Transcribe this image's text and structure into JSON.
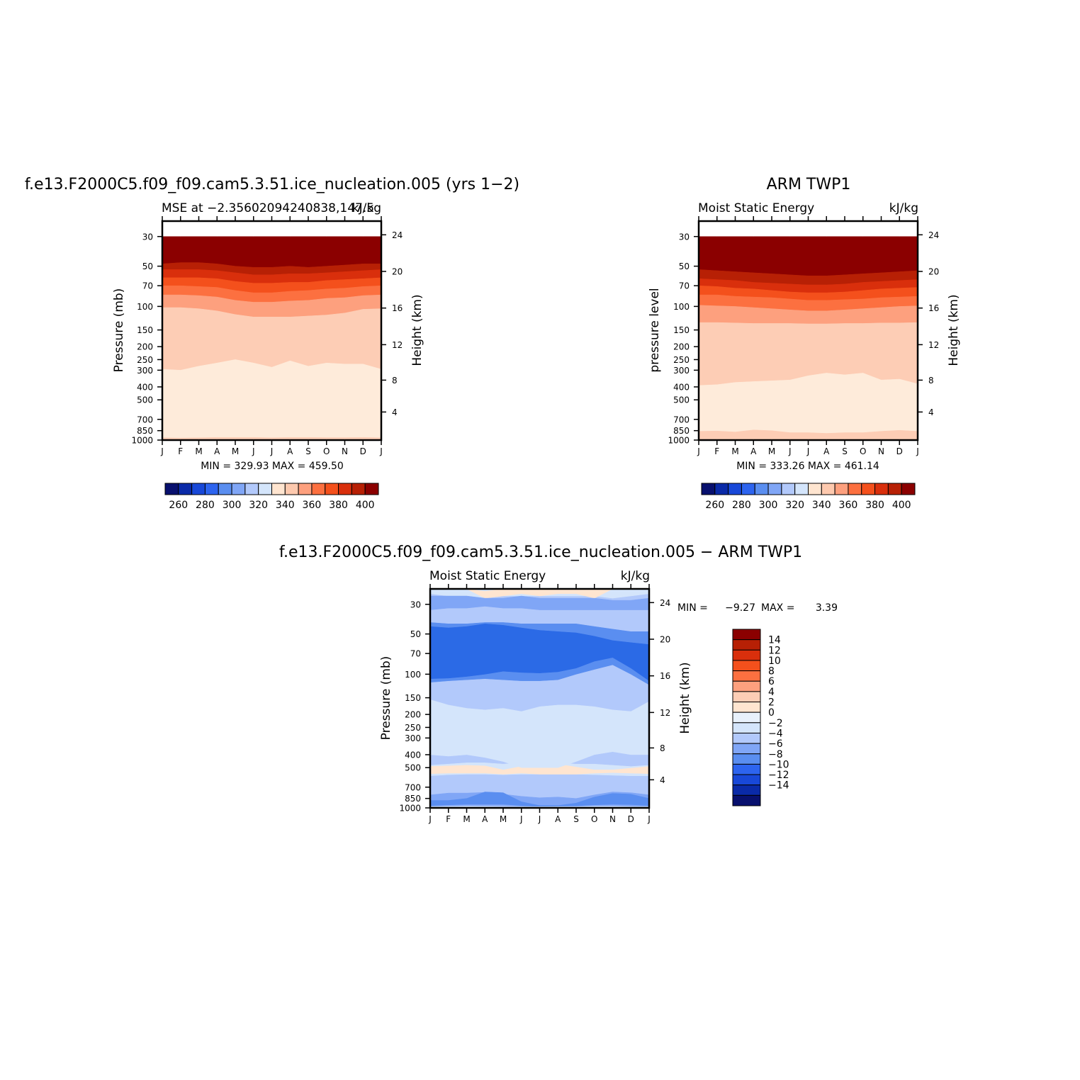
{
  "chart_data": [
    {
      "type": "heatmap",
      "id": "model",
      "title": "f.e13.F2000C5.f09_f09.cam5.3.51.ice_nucleation.005 (yrs 1−2)",
      "subtitle_left": "MSE at −2.35602094240838,147.5",
      "subtitle_right": "kJ/kg",
      "ylabel": "Pressure (mb)",
      "ylabel_right": "Height (km)",
      "months": [
        "J",
        "F",
        "M",
        "A",
        "M",
        "J",
        "J",
        "A",
        "S",
        "O",
        "N",
        "D",
        "J"
      ],
      "pressure_ticks": [
        30,
        50,
        70,
        100,
        150,
        200,
        250,
        300,
        400,
        500,
        700,
        850,
        1000
      ],
      "height_ticks": [
        24,
        20,
        16,
        12,
        8,
        4
      ],
      "ylim": [
        1000,
        23
      ],
      "stats": "MIN = 329.93 MAX = 459.50",
      "colorbar_labels": [
        "260",
        "280",
        "300",
        "320",
        "340",
        "360",
        "380",
        "400"
      ],
      "bands": [
        {
          "level": 420,
          "color": "#8b0000",
          "pressure": [
            30,
            30,
            30,
            30,
            30,
            30,
            30,
            30,
            30,
            30,
            30,
            30,
            30
          ]
        },
        {
          "level": 400,
          "color": "#b72005",
          "pressure": [
            48,
            47,
            47,
            48,
            50,
            51,
            51,
            50,
            51,
            50,
            49,
            48,
            48
          ]
        },
        {
          "level": 390,
          "color": "#d92f0c",
          "pressure": [
            53,
            53,
            53,
            54,
            56,
            58,
            58,
            57,
            57,
            56,
            55,
            54,
            53
          ]
        },
        {
          "level": 380,
          "color": "#f4501c",
          "pressure": [
            61,
            61,
            61,
            62,
            65,
            67,
            67,
            66,
            66,
            64,
            63,
            62,
            61
          ]
        },
        {
          "level": 370,
          "color": "#fc7040",
          "pressure": [
            70,
            70,
            71,
            72,
            76,
            79,
            79,
            77,
            76,
            74,
            73,
            71,
            70
          ]
        },
        {
          "level": 360,
          "color": "#fda07e",
          "pressure": [
            82,
            82,
            83,
            85,
            90,
            93,
            93,
            91,
            90,
            87,
            86,
            83,
            82
          ]
        },
        {
          "level": 350,
          "color": "#fdcdb5",
          "pressure": [
            102,
            102,
            104,
            108,
            115,
            120,
            120,
            120,
            118,
            116,
            112,
            105,
            104
          ]
        },
        {
          "level": 340,
          "color": "#feebda",
          "pressure": [
            295,
            300,
            280,
            265,
            250,
            265,
            285,
            255,
            280,
            265,
            270,
            270,
            295
          ]
        },
        {
          "level": 335,
          "color": "#fdcdb5",
          "pressure": [
            960,
            965,
            960,
            955,
            955,
            955,
            960,
            955,
            955,
            958,
            958,
            955,
            960
          ]
        }
      ]
    },
    {
      "type": "heatmap",
      "id": "obs",
      "title": "ARM TWP1",
      "subtitle_left": "Moist Static Energy",
      "subtitle_right": "kJ/kg",
      "ylabel": "pressure level",
      "ylabel_right": "Height (km)",
      "months": [
        "J",
        "F",
        "M",
        "A",
        "M",
        "J",
        "J",
        "A",
        "S",
        "O",
        "N",
        "D",
        "J"
      ],
      "pressure_ticks": [
        30,
        50,
        70,
        100,
        150,
        200,
        250,
        300,
        400,
        500,
        700,
        850,
        1000
      ],
      "height_ticks": [
        24,
        20,
        16,
        12,
        8,
        4
      ],
      "ylim": [
        1000,
        23
      ],
      "stats": "MIN = 333.26 MAX = 461.14",
      "colorbar_labels": [
        "260",
        "280",
        "300",
        "320",
        "340",
        "360",
        "380",
        "400"
      ],
      "bands": [
        {
          "level": 420,
          "color": "#8b0000",
          "pressure": [
            30,
            30,
            30,
            30,
            30,
            30,
            30,
            30,
            30,
            30,
            30,
            30,
            30
          ]
        },
        {
          "level": 400,
          "color": "#b72005",
          "pressure": [
            53,
            54,
            55,
            56,
            57,
            58,
            59,
            59,
            58,
            57,
            56,
            55,
            54
          ]
        },
        {
          "level": 390,
          "color": "#d92f0c",
          "pressure": [
            62,
            63,
            64,
            66,
            67,
            68,
            69,
            69,
            68,
            66,
            65,
            64,
            63
          ]
        },
        {
          "level": 380,
          "color": "#f4501c",
          "pressure": [
            70,
            71,
            73,
            74,
            76,
            78,
            79,
            79,
            78,
            76,
            74,
            73,
            72
          ]
        },
        {
          "level": 370,
          "color": "#fc7040",
          "pressure": [
            82,
            82,
            84,
            85,
            86,
            88,
            90,
            90,
            89,
            88,
            86,
            85,
            84
          ]
        },
        {
          "level": 360,
          "color": "#fda07e",
          "pressure": [
            98,
            99,
            100,
            102,
            104,
            106,
            108,
            108,
            106,
            104,
            102,
            100,
            99
          ]
        },
        {
          "level": 350,
          "color": "#fdcdb5",
          "pressure": [
            132,
            132,
            133,
            134,
            134,
            134,
            135,
            135,
            134,
            134,
            133,
            133,
            132
          ]
        },
        {
          "level": 340,
          "color": "#feebda",
          "pressure": [
            390,
            385,
            370,
            365,
            360,
            355,
            330,
            315,
            325,
            315,
            355,
            350,
            380
          ]
        },
        {
          "level": 335,
          "color": "#fdcdb5",
          "pressure": [
            860,
            855,
            870,
            840,
            850,
            880,
            880,
            890,
            880,
            880,
            860,
            845,
            860
          ]
        }
      ]
    },
    {
      "type": "heatmap",
      "id": "diff",
      "title": "f.e13.F2000C5.f09_f09.cam5.3.51.ice_nucleation.005 − ARM TWP1",
      "subtitle_left": "Moist Static Energy",
      "subtitle_right": "kJ/kg",
      "ylabel": "Pressure (mb)",
      "ylabel_right": "Height (km)",
      "months": [
        "J",
        "F",
        "M",
        "A",
        "M",
        "J",
        "J",
        "A",
        "S",
        "O",
        "N",
        "D",
        "J"
      ],
      "pressure_ticks": [
        30,
        50,
        70,
        100,
        150,
        200,
        250,
        300,
        400,
        500,
        700,
        850,
        1000
      ],
      "height_ticks": [
        24,
        20,
        16,
        12,
        8,
        4
      ],
      "ylim": [
        1000,
        23
      ],
      "stats_min_label": "MIN =",
      "stats_min_value": "−9.27",
      "stats_max_label": "MAX =",
      "stats_max_value": "3.39",
      "colorbar_labels": [
        "14",
        "12",
        "10",
        "8",
        "6",
        "4",
        "2",
        "0",
        "−2",
        "−4",
        "−6",
        "−8",
        "−10",
        "−12",
        "−14"
      ],
      "base_color": "#b2c9fb",
      "regions": [
        {
          "value": -1,
          "color": "#d4e5fb",
          "top": [
            23,
            23,
            23,
            23,
            23,
            23,
            23,
            23,
            23,
            23,
            23,
            23,
            23
          ],
          "bottom": [
            25,
            26,
            26,
            27,
            26,
            26,
            26,
            26,
            26,
            26,
            27,
            26,
            25
          ]
        },
        {
          "value": 1,
          "color": "#ffe5d0",
          "top": [
            23,
            23,
            23,
            24,
            23,
            23,
            23,
            23,
            23,
            23,
            23,
            23,
            23
          ],
          "bottom": [
            23,
            23,
            23,
            27,
            26,
            25,
            26,
            25,
            25,
            27,
            23,
            23,
            23
          ]
        },
        {
          "value": -1,
          "color": "#d4e5fb",
          "top": [
            480,
            470,
            460,
            460,
            470,
            460,
            460,
            460,
            470,
            470,
            480,
            490,
            480
          ],
          "bottom": [
            575,
            565,
            560,
            560,
            565,
            560,
            560,
            560,
            560,
            565,
            570,
            575,
            575
          ]
        },
        {
          "value": 1,
          "color": "#ffe5d0",
          "top": [
            490,
            485,
            480,
            485,
            520,
            490,
            480,
            470,
            495,
            520,
            520,
            505,
            490
          ],
          "bottom": [
            555,
            550,
            550,
            550,
            560,
            550,
            560,
            560,
            560,
            550,
            545,
            550,
            555
          ]
        },
        {
          "value": -5,
          "color": "#80a6f6",
          "top": [
            800,
            775,
            775,
            765,
            790,
            820,
            840,
            830,
            850,
            800,
            760,
            770,
            800
          ],
          "bottom": [
            975,
            970,
            960,
            960,
            960,
            975,
            985,
            975,
            975,
            965,
            960,
            970,
            975
          ]
        },
        {
          "value": -7,
          "color": "#5a8ef0",
          "top": [
            880,
            880,
            850,
            760,
            770,
            900,
            960,
            960,
            920,
            830,
            780,
            790,
            850
          ],
          "bottom": [
            960,
            950,
            940,
            940,
            940,
            960,
            980,
            970,
            965,
            950,
            940,
            945,
            960
          ]
        },
        {
          "value": -5,
          "color": "#80a6f6",
          "top": [
            26,
            26,
            26,
            27,
            27,
            26,
            27,
            27,
            27,
            27,
            28,
            28,
            27
          ],
          "bottom": [
            33,
            32,
            32,
            31,
            32,
            32,
            33,
            33,
            33,
            33,
            33,
            33,
            33
          ]
        },
        {
          "value": -7,
          "color": "#5a8ef0",
          "top": [
            41,
            42,
            42,
            41,
            41,
            42,
            42,
            42,
            42,
            44,
            46,
            48,
            48
          ],
          "bottom": [
            115,
            112,
            110,
            108,
            110,
            112,
            112,
            110,
            100,
            92,
            85,
            100,
            120
          ]
        },
        {
          "value": -9,
          "color": "#2b6ae6",
          "top": [
            44,
            45,
            44,
            42,
            43,
            45,
            47,
            48,
            49,
            52,
            56,
            58,
            60
          ],
          "bottom": [
            108,
            107,
            104,
            100,
            95,
            97,
            98,
            96,
            90,
            80,
            75,
            90,
            112
          ]
        },
        {
          "value": -1,
          "color": "#d4e5fb",
          "top": [
            155,
            170,
            180,
            185,
            180,
            190,
            175,
            170,
            170,
            175,
            185,
            190,
            160
          ],
          "bottom": [
            400,
            410,
            400,
            420,
            450,
            500,
            500,
            500,
            450,
            400,
            380,
            400,
            400
          ]
        },
        {
          "value": -1,
          "color": "#d4e5fb",
          "top": [
            980,
            975,
            975,
            980,
            985,
            980,
            980,
            980,
            980,
            975,
            978,
            980,
            980
          ],
          "bottom": [
            1000,
            1000,
            1000,
            1000,
            1000,
            1000,
            1000,
            1000,
            1000,
            1000,
            1000,
            1000,
            1000
          ]
        }
      ]
    }
  ]
}
